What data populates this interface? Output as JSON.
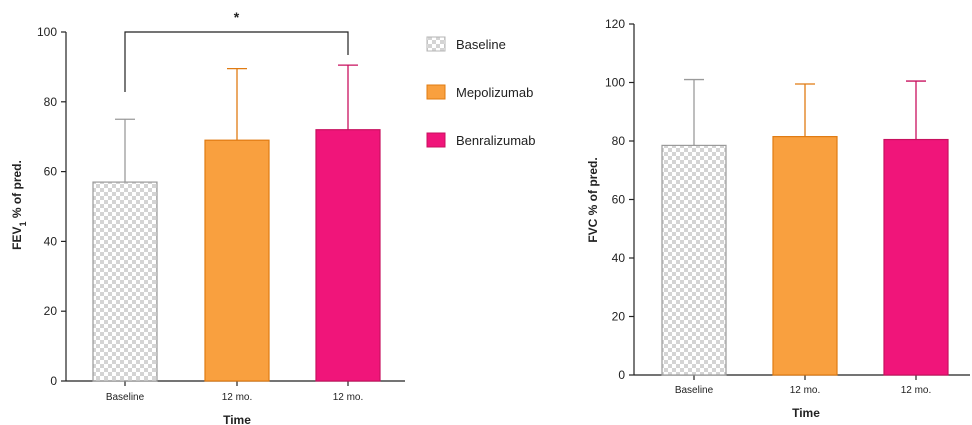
{
  "chart_data": [
    {
      "type": "bar",
      "categories": [
        "Baseline",
        "12 mo.",
        "12 mo."
      ],
      "series_names": [
        "Baseline",
        "Mepolizumab",
        "Benralizumab"
      ],
      "values": [
        57,
        69,
        72
      ],
      "error_upper": [
        75,
        89.5,
        90.5
      ],
      "xlabel": "Time",
      "ylabel": "FEV1 % of pred.",
      "ylabel_main": "FEV",
      "ylabel_sub": "1",
      "ylabel_rest": " % of pred.",
      "ylim": [
        0,
        100
      ],
      "yticks": [
        0,
        20,
        40,
        60,
        80,
        100
      ],
      "significance": {
        "from": 0,
        "to": 2,
        "label": "*"
      }
    },
    {
      "type": "bar",
      "categories": [
        "Baseline",
        "12 mo.",
        "12 mo."
      ],
      "series_names": [
        "Baseline",
        "Mepolizumab",
        "Benralizumab"
      ],
      "values": [
        78.5,
        81.5,
        80.5
      ],
      "error_upper": [
        101,
        99.5,
        100.5
      ],
      "xlabel": "Time",
      "ylabel": "FVC % of pred.",
      "ylim": [
        0,
        120
      ],
      "yticks": [
        0,
        20,
        40,
        60,
        80,
        100,
        120
      ]
    }
  ],
  "legend": {
    "position": "between-panels",
    "items": [
      {
        "label": "Baseline",
        "color": "#d9d9d9",
        "pattern": "checkered"
      },
      {
        "label": "Mepolizumab",
        "color": "#f9a03f"
      },
      {
        "label": "Benralizumab",
        "color": "#f0157a"
      }
    ]
  },
  "colors": {
    "baseline_fill": "#e4e4e4",
    "baseline_stroke": "#9a9a9a",
    "mepolizumab_fill": "#f9a03f",
    "mepolizumab_stroke": "#e07b12",
    "benralizumab_fill": "#f0157a",
    "benralizumab_stroke": "#c8105f"
  }
}
